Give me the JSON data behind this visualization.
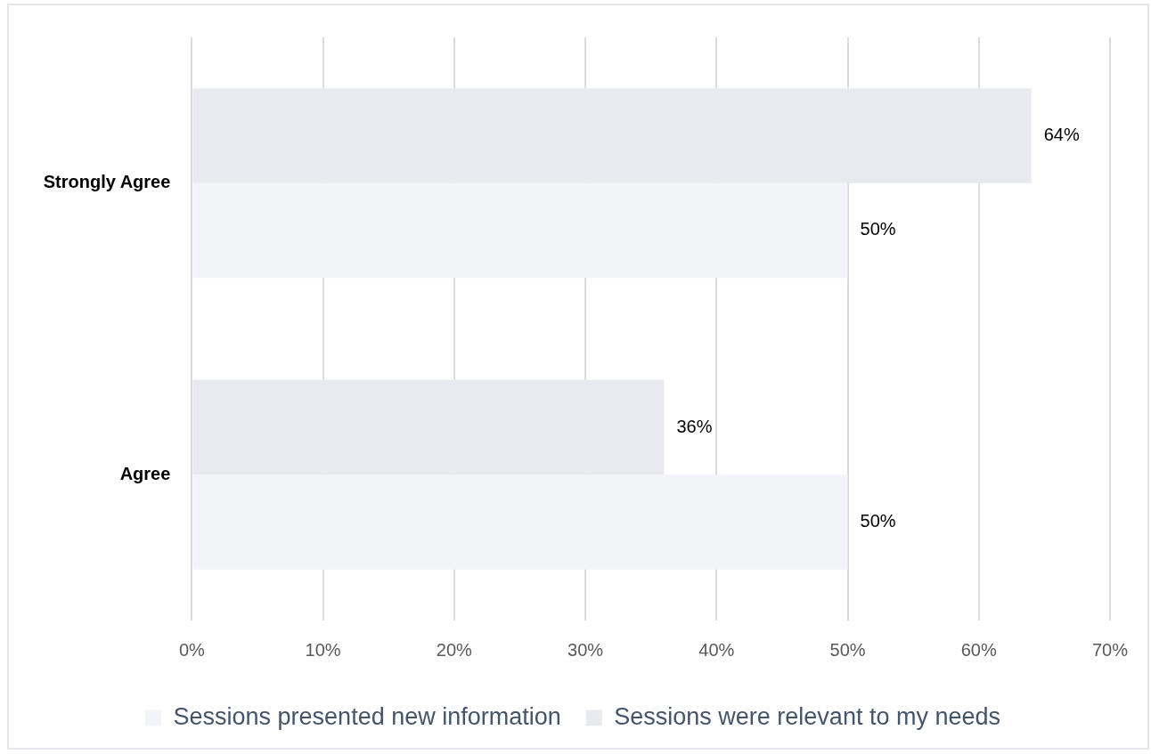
{
  "chart_data": {
    "type": "bar",
    "orientation": "horizontal",
    "categories": [
      "Strongly Agree",
      "Agree"
    ],
    "series": [
      {
        "name": "Sessions presented new information",
        "color": "#f3f4f7",
        "values": [
          50,
          50
        ],
        "value_labels": [
          "50%",
          "50%"
        ]
      },
      {
        "name": "Sessions were relevant to my needs",
        "color": "#e8eaef",
        "values": [
          64,
          36
        ],
        "value_labels": [
          "64%",
          "36%"
        ]
      }
    ],
    "xlim": [
      0,
      70
    ],
    "xticks": [
      {
        "value": 0,
        "label": "0%"
      },
      {
        "value": 10,
        "label": "10%"
      },
      {
        "value": 20,
        "label": "20%"
      },
      {
        "value": 30,
        "label": "30%"
      },
      {
        "value": 40,
        "label": "40%"
      },
      {
        "value": 50,
        "label": "50%"
      },
      {
        "value": 60,
        "label": "60%"
      },
      {
        "value": 70,
        "label": "70%"
      }
    ],
    "grid": "x",
    "legend": "bottom"
  }
}
